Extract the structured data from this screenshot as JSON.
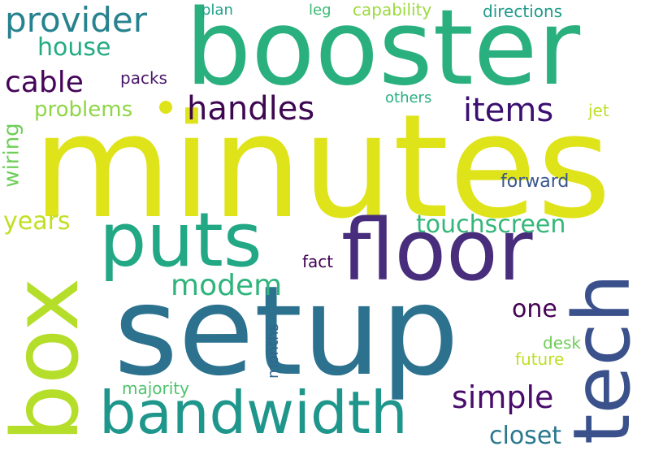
{
  "background": "#ffffff",
  "words": [
    {
      "text": "minutes",
      "color": "#dfe319"
    },
    {
      "text": "booster",
      "color": "#2ab07f"
    },
    {
      "text": "setup",
      "color": "#2c728e"
    },
    {
      "text": "box",
      "color": "#b5de2b"
    },
    {
      "text": "floor",
      "color": "#472d7b"
    },
    {
      "text": "tech",
      "color": "#3b518b"
    },
    {
      "text": "puts",
      "color": "#22a884"
    },
    {
      "text": "bandwidth",
      "color": "#1f968b"
    },
    {
      "text": "provider",
      "color": "#26828e"
    },
    {
      "text": "handles",
      "color": "#3e0751"
    },
    {
      "text": "items",
      "color": "#3b0f70"
    },
    {
      "text": "cable",
      "color": "#450559"
    },
    {
      "text": "simple",
      "color": "#4a0c6b"
    },
    {
      "text": "touchscreen",
      "color": "#35b779"
    },
    {
      "text": "modem",
      "color": "#2fb47c"
    },
    {
      "text": "house",
      "color": "#25ab82"
    },
    {
      "text": "closet",
      "color": "#2a788e"
    },
    {
      "text": "years",
      "color": "#c2df23"
    },
    {
      "text": "problems",
      "color": "#8ed645"
    },
    {
      "text": "wiring",
      "color": "#6ece58"
    },
    {
      "text": "one",
      "color": "#440154"
    },
    {
      "text": "forward",
      "color": "#39568c"
    },
    {
      "text": "packs",
      "color": "#481769"
    },
    {
      "text": "plan",
      "color": "#1fa088"
    },
    {
      "text": "leg",
      "color": "#3aba76"
    },
    {
      "text": "capability",
      "color": "#9bd93c"
    },
    {
      "text": "directions",
      "color": "#1f9a8a"
    },
    {
      "text": "others",
      "color": "#29af7f"
    },
    {
      "text": "jet",
      "color": "#bddf26"
    },
    {
      "text": "fact",
      "color": "#440154"
    },
    {
      "text": "months",
      "color": "#33638d"
    },
    {
      "text": "desk",
      "color": "#6ece58"
    },
    {
      "text": "future",
      "color": "#bddf26"
    },
    {
      "text": "majority",
      "color": "#4ec36b"
    }
  ]
}
